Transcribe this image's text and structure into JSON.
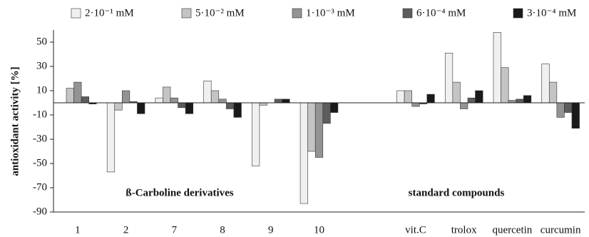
{
  "chart_data": {
    "type": "bar",
    "y_label": "antioxidant  activity [%]",
    "annotations": [
      "ß-Carboline derivatives",
      "standard compounds"
    ],
    "categories": [
      "1",
      "2",
      "7",
      "8",
      "9",
      "10",
      null,
      "vit.C",
      "trolox",
      "quercetin",
      "curcumin"
    ],
    "series": [
      {
        "name": "2·10⁻¹ mM",
        "color": "#f0f0f0",
        "values": [
          0,
          -57,
          4,
          18,
          -52,
          -83,
          null,
          10,
          41,
          58,
          32
        ]
      },
      {
        "name": "5·10⁻² mM",
        "color": "#c4c4c4",
        "values": [
          12,
          -6,
          13,
          10,
          -2,
          -40,
          null,
          10,
          17,
          29,
          17
        ]
      },
      {
        "name": "1·10⁻³ mM",
        "color": "#939393",
        "values": [
          17,
          10,
          4,
          3,
          0,
          -45,
          null,
          -3,
          -5,
          2,
          -12
        ]
      },
      {
        "name": "6·10⁻⁴ mM",
        "color": "#5c5c5c",
        "values": [
          5,
          1,
          -4,
          -5,
          3,
          -17,
          null,
          -1,
          4,
          3,
          -8
        ]
      },
      {
        "name": "3·10⁻⁴ mM",
        "color": "#1a1a1a",
        "values": [
          -1,
          -9,
          -9,
          -12,
          3,
          -8,
          null,
          7,
          10,
          6,
          -21
        ]
      }
    ],
    "ylim": [
      -90,
      60
    ],
    "yticks": [
      -90,
      -70,
      -50,
      -30,
      -10,
      10,
      30,
      50
    ]
  }
}
